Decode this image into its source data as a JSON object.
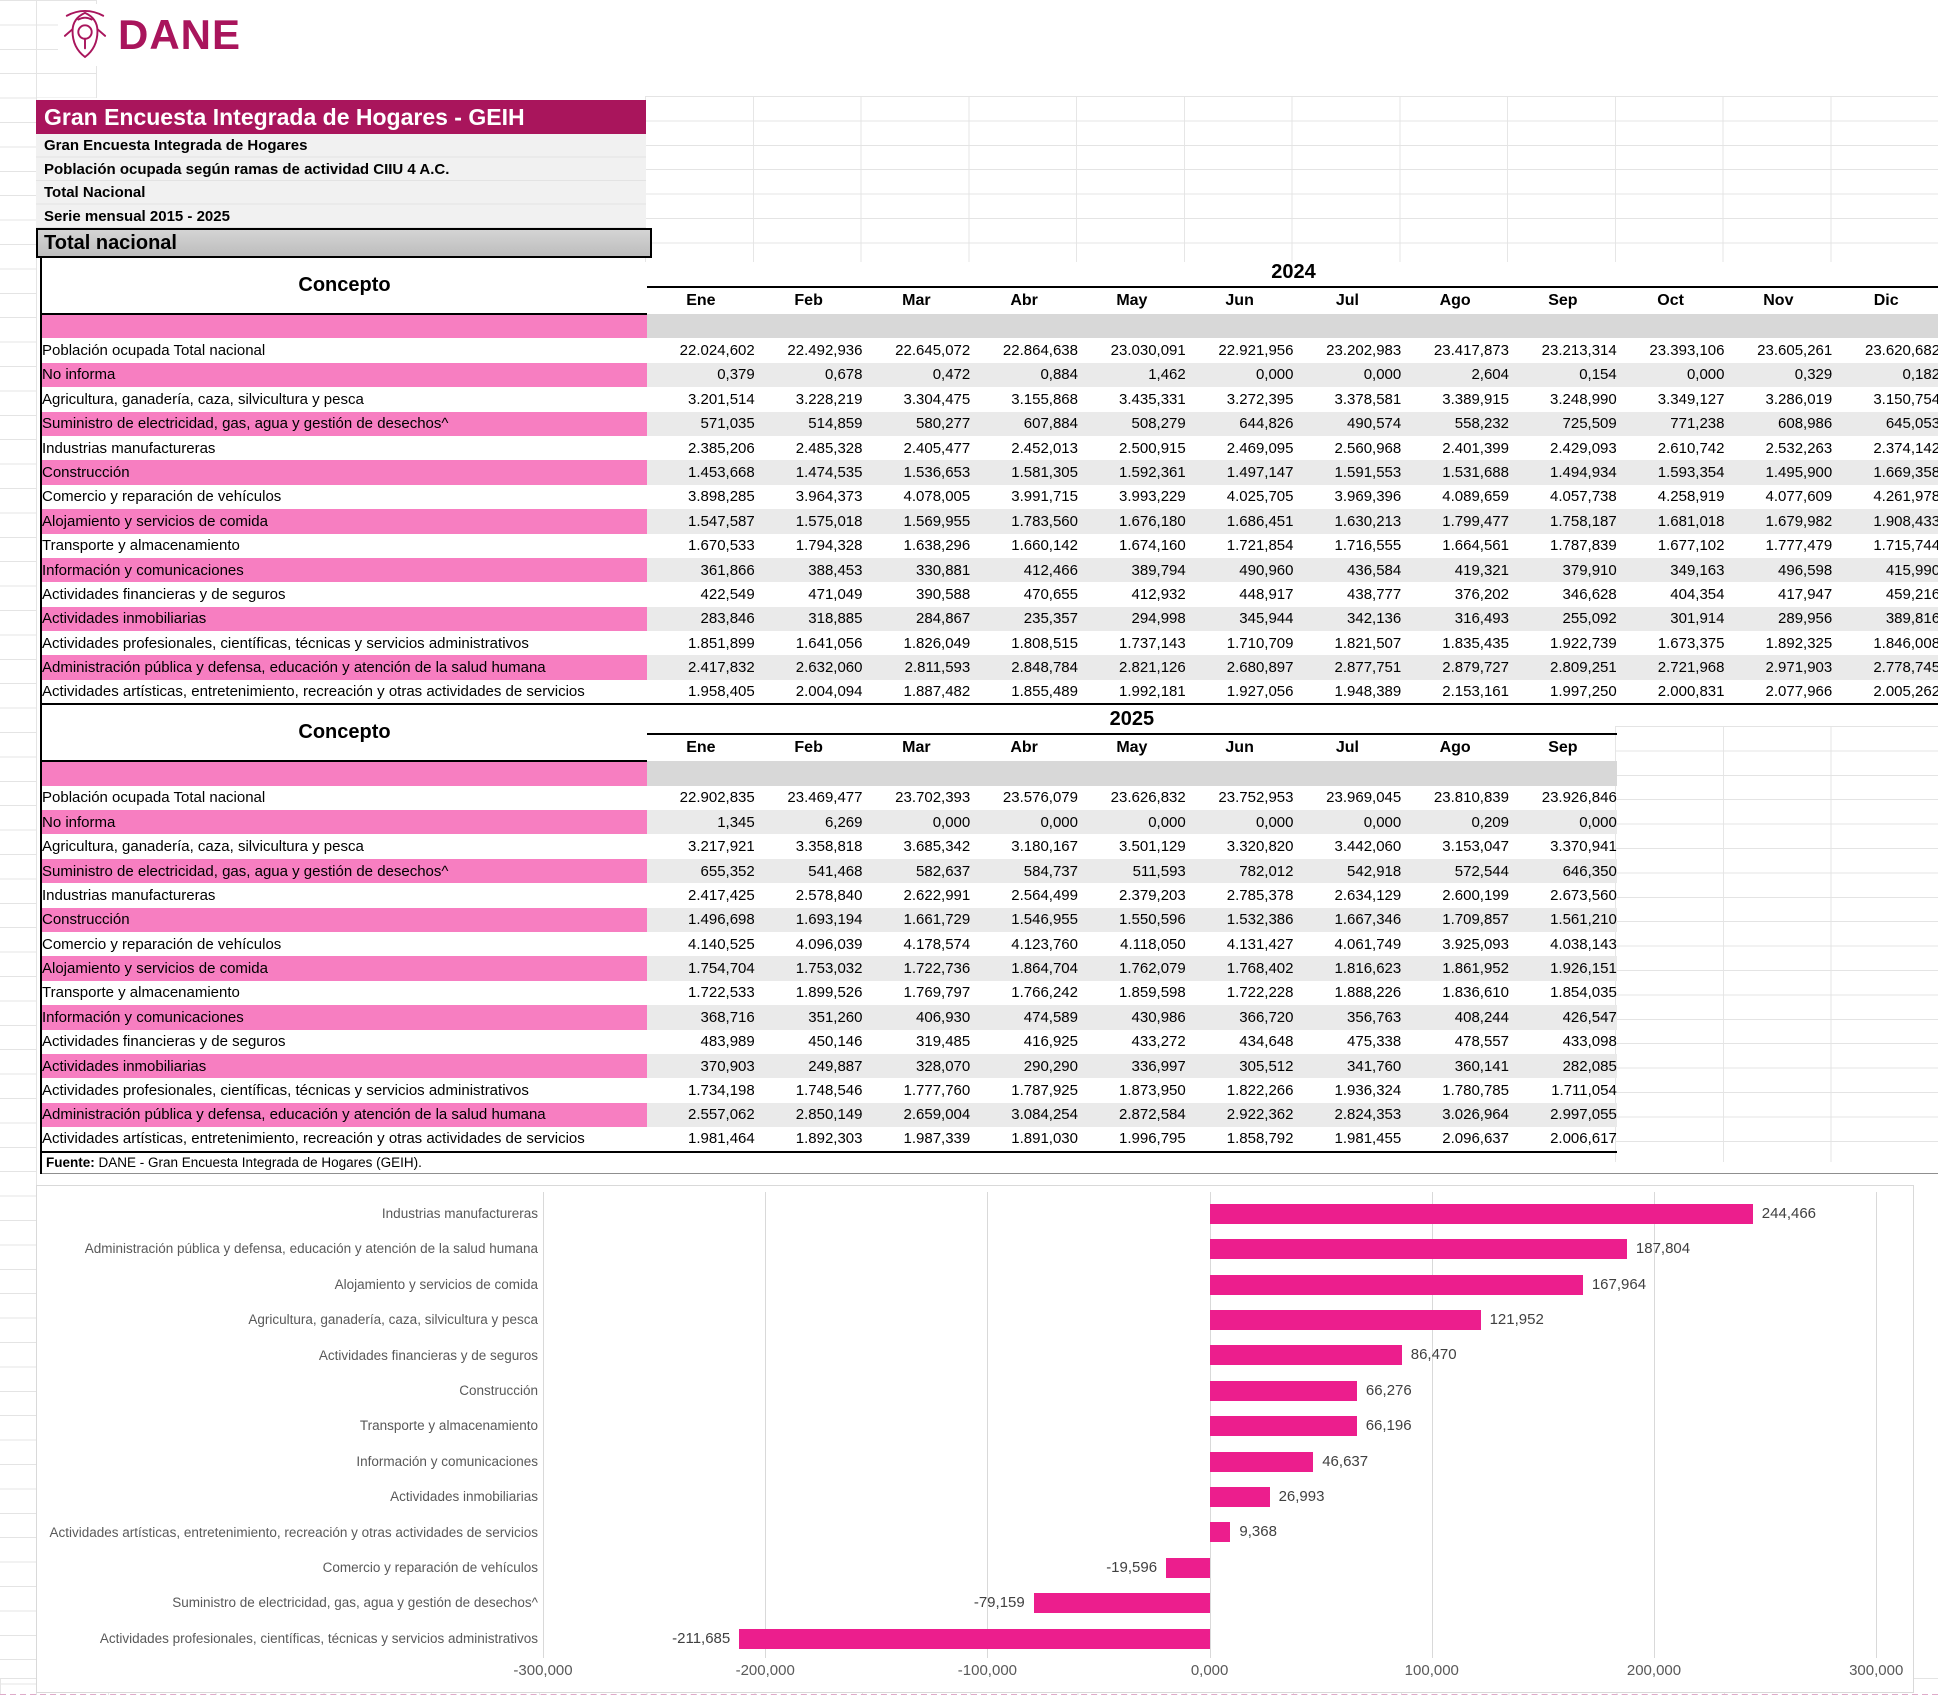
{
  "colors": {
    "accent": "#A9155C",
    "row_highlight": "#F77EC1",
    "row_gray": "#EAEAEA",
    "band_gray": "#D8D8D8",
    "bar": "#EC1E8D"
  },
  "header": {
    "logo_text": "DANE",
    "title": "Gran Encuesta Integrada de Hogares - GEIH",
    "subtitles": [
      "Gran Encuesta Integrada de Hogares",
      "Población ocupada según ramas de actividad CIIU 4 A.C.",
      "Total Nacional",
      "Serie mensual 2015 - 2025"
    ],
    "section_band": "Total nacional"
  },
  "tables": [
    {
      "year": "2024",
      "concept_header": "Concepto",
      "months": [
        "Ene",
        "Feb",
        "Mar",
        "Abr",
        "May",
        "Jun",
        "Jul",
        "Ago",
        "Sep",
        "Oct",
        "Nov",
        "Dic"
      ],
      "rows": [
        {
          "label": "Población ocupada Total nacional",
          "highlight": false,
          "values": [
            "22.024,602",
            "22.492,936",
            "22.645,072",
            "22.864,638",
            "23.030,091",
            "22.921,956",
            "23.202,983",
            "23.417,873",
            "23.213,314",
            "23.393,106",
            "23.605,261",
            "23.620,682"
          ]
        },
        {
          "label": "No informa",
          "highlight": true,
          "values": [
            "0,379",
            "0,678",
            "0,472",
            "0,884",
            "1,462",
            "0,000",
            "0,000",
            "2,604",
            "0,154",
            "0,000",
            "0,329",
            "0,182"
          ]
        },
        {
          "label": "Agricultura, ganadería, caza, silvicultura y pesca",
          "highlight": false,
          "values": [
            "3.201,514",
            "3.228,219",
            "3.304,475",
            "3.155,868",
            "3.435,331",
            "3.272,395",
            "3.378,581",
            "3.389,915",
            "3.248,990",
            "3.349,127",
            "3.286,019",
            "3.150,754"
          ]
        },
        {
          "label": "Suministro de electricidad, gas, agua y gestión de desechos^",
          "highlight": true,
          "values": [
            "571,035",
            "514,859",
            "580,277",
            "607,884",
            "508,279",
            "644,826",
            "490,574",
            "558,232",
            "725,509",
            "771,238",
            "608,986",
            "645,053"
          ]
        },
        {
          "label": "Industrias manufactureras",
          "highlight": false,
          "values": [
            "2.385,206",
            "2.485,328",
            "2.405,477",
            "2.452,013",
            "2.500,915",
            "2.469,095",
            "2.560,968",
            "2.401,399",
            "2.429,093",
            "2.610,742",
            "2.532,263",
            "2.374,142"
          ]
        },
        {
          "label": "Construcción",
          "highlight": true,
          "values": [
            "1.453,668",
            "1.474,535",
            "1.536,653",
            "1.581,305",
            "1.592,361",
            "1.497,147",
            "1.591,553",
            "1.531,688",
            "1.494,934",
            "1.593,354",
            "1.495,900",
            "1.669,358"
          ]
        },
        {
          "label": "Comercio y reparación de vehículos",
          "highlight": false,
          "values": [
            "3.898,285",
            "3.964,373",
            "4.078,005",
            "3.991,715",
            "3.993,229",
            "4.025,705",
            "3.969,396",
            "4.089,659",
            "4.057,738",
            "4.258,919",
            "4.077,609",
            "4.261,978"
          ]
        },
        {
          "label": "Alojamiento y servicios de comida",
          "highlight": true,
          "values": [
            "1.547,587",
            "1.575,018",
            "1.569,955",
            "1.783,560",
            "1.676,180",
            "1.686,451",
            "1.630,213",
            "1.799,477",
            "1.758,187",
            "1.681,018",
            "1.679,982",
            "1.908,433"
          ]
        },
        {
          "label": "Transporte y almacenamiento",
          "highlight": false,
          "values": [
            "1.670,533",
            "1.794,328",
            "1.638,296",
            "1.660,142",
            "1.674,160",
            "1.721,854",
            "1.716,555",
            "1.664,561",
            "1.787,839",
            "1.677,102",
            "1.777,479",
            "1.715,744"
          ]
        },
        {
          "label": "Información y comunicaciones",
          "highlight": true,
          "values": [
            "361,866",
            "388,453",
            "330,881",
            "412,466",
            "389,794",
            "490,960",
            "436,584",
            "419,321",
            "379,910",
            "349,163",
            "496,598",
            "415,990"
          ]
        },
        {
          "label": "Actividades financieras y de seguros",
          "highlight": false,
          "values": [
            "422,549",
            "471,049",
            "390,588",
            "470,655",
            "412,932",
            "448,917",
            "438,777",
            "376,202",
            "346,628",
            "404,354",
            "417,947",
            "459,216"
          ]
        },
        {
          "label": "Actividades inmobiliarias",
          "highlight": true,
          "values": [
            "283,846",
            "318,885",
            "284,867",
            "235,357",
            "294,998",
            "345,944",
            "342,136",
            "316,493",
            "255,092",
            "301,914",
            "289,956",
            "389,816"
          ]
        },
        {
          "label": "Actividades profesionales, científicas, técnicas y servicios administrativos",
          "highlight": false,
          "values": [
            "1.851,899",
            "1.641,056",
            "1.826,049",
            "1.808,515",
            "1.737,143",
            "1.710,709",
            "1.821,507",
            "1.835,435",
            "1.922,739",
            "1.673,375",
            "1.892,325",
            "1.846,008"
          ]
        },
        {
          "label": "Administración pública y defensa, educación y atención de la salud humana",
          "highlight": true,
          "values": [
            "2.417,832",
            "2.632,060",
            "2.811,593",
            "2.848,784",
            "2.821,126",
            "2.680,897",
            "2.877,751",
            "2.879,727",
            "2.809,251",
            "2.721,968",
            "2.971,903",
            "2.778,745"
          ]
        },
        {
          "label": "Actividades artísticas, entretenimiento, recreación y otras actividades de servicios",
          "highlight": false,
          "values": [
            "1.958,405",
            "2.004,094",
            "1.887,482",
            "1.855,489",
            "1.992,181",
            "1.927,056",
            "1.948,389",
            "2.153,161",
            "1.997,250",
            "2.000,831",
            "2.077,966",
            "2.005,262"
          ]
        }
      ]
    },
    {
      "year": "2025",
      "concept_header": "Concepto",
      "months": [
        "Ene",
        "Feb",
        "Mar",
        "Abr",
        "May",
        "Jun",
        "Jul",
        "Ago",
        "Sep"
      ],
      "rows": [
        {
          "label": "Población ocupada Total nacional",
          "highlight": false,
          "values": [
            "22.902,835",
            "23.469,477",
            "23.702,393",
            "23.576,079",
            "23.626,832",
            "23.752,953",
            "23.969,045",
            "23.810,839",
            "23.926,846"
          ]
        },
        {
          "label": "No informa",
          "highlight": true,
          "values": [
            "1,345",
            "6,269",
            "0,000",
            "0,000",
            "0,000",
            "0,000",
            "0,000",
            "0,209",
            "0,000"
          ]
        },
        {
          "label": "Agricultura, ganadería, caza, silvicultura y pesca",
          "highlight": false,
          "values": [
            "3.217,921",
            "3.358,818",
            "3.685,342",
            "3.180,167",
            "3.501,129",
            "3.320,820",
            "3.442,060",
            "3.153,047",
            "3.370,941"
          ]
        },
        {
          "label": "Suministro de electricidad, gas, agua y gestión de desechos^",
          "highlight": true,
          "values": [
            "655,352",
            "541,468",
            "582,637",
            "584,737",
            "511,593",
            "782,012",
            "542,918",
            "572,544",
            "646,350"
          ]
        },
        {
          "label": "Industrias manufactureras",
          "highlight": false,
          "values": [
            "2.417,425",
            "2.578,840",
            "2.622,991",
            "2.564,499",
            "2.379,203",
            "2.785,378",
            "2.634,129",
            "2.600,199",
            "2.673,560"
          ]
        },
        {
          "label": "Construcción",
          "highlight": true,
          "values": [
            "1.496,698",
            "1.693,194",
            "1.661,729",
            "1.546,955",
            "1.550,596",
            "1.532,386",
            "1.667,346",
            "1.709,857",
            "1.561,210"
          ]
        },
        {
          "label": "Comercio y reparación de vehículos",
          "highlight": false,
          "values": [
            "4.140,525",
            "4.096,039",
            "4.178,574",
            "4.123,760",
            "4.118,050",
            "4.131,427",
            "4.061,749",
            "3.925,093",
            "4.038,143"
          ]
        },
        {
          "label": "Alojamiento y servicios de comida",
          "highlight": true,
          "values": [
            "1.754,704",
            "1.753,032",
            "1.722,736",
            "1.864,704",
            "1.762,079",
            "1.768,402",
            "1.816,623",
            "1.861,952",
            "1.926,151"
          ]
        },
        {
          "label": "Transporte y almacenamiento",
          "highlight": false,
          "values": [
            "1.722,533",
            "1.899,526",
            "1.769,797",
            "1.766,242",
            "1.859,598",
            "1.722,228",
            "1.888,226",
            "1.836,610",
            "1.854,035"
          ]
        },
        {
          "label": "Información y comunicaciones",
          "highlight": true,
          "values": [
            "368,716",
            "351,260",
            "406,930",
            "474,589",
            "430,986",
            "366,720",
            "356,763",
            "408,244",
            "426,547"
          ]
        },
        {
          "label": "Actividades financieras y de seguros",
          "highlight": false,
          "values": [
            "483,989",
            "450,146",
            "319,485",
            "416,925",
            "433,272",
            "434,648",
            "475,338",
            "478,557",
            "433,098"
          ]
        },
        {
          "label": "Actividades inmobiliarias",
          "highlight": true,
          "values": [
            "370,903",
            "249,887",
            "328,070",
            "290,290",
            "336,997",
            "305,512",
            "341,760",
            "360,141",
            "282,085"
          ]
        },
        {
          "label": "Actividades profesionales, científicas, técnicas y servicios administrativos",
          "highlight": false,
          "values": [
            "1.734,198",
            "1.748,546",
            "1.777,760",
            "1.787,925",
            "1.873,950",
            "1.822,266",
            "1.936,324",
            "1.780,785",
            "1.711,054"
          ]
        },
        {
          "label": "Administración pública y defensa, educación y atención de la salud humana",
          "highlight": true,
          "values": [
            "2.557,062",
            "2.850,149",
            "2.659,004",
            "3.084,254",
            "2.872,584",
            "2.922,362",
            "2.824,353",
            "3.026,964",
            "2.997,055"
          ]
        },
        {
          "label": "Actividades artísticas, entretenimiento, recreación y otras actividades de servicios",
          "highlight": false,
          "values": [
            "1.981,464",
            "1.892,303",
            "1.987,339",
            "1.891,030",
            "1.996,795",
            "1.858,792",
            "1.981,455",
            "2.096,637",
            "2.006,617"
          ]
        }
      ]
    }
  ],
  "source_note": {
    "prefix": "Fuente:",
    "text": " DANE - Gran Encuesta Integrada de Hogares (GEIH)."
  },
  "chart_data": {
    "type": "bar",
    "orientation": "horizontal",
    "title": "",
    "xlabel": "",
    "ylabel": "",
    "grid": true,
    "legend": "none",
    "categories": [
      "Industrias manufactureras",
      "Administración pública y defensa, educación y atención de la salud humana",
      "Alojamiento y servicios de comida",
      "Agricultura, ganadería, caza, silvicultura y pesca",
      "Actividades financieras y de seguros",
      "Construcción",
      "Transporte y almacenamiento",
      "Información y comunicaciones",
      "Actividades inmobiliarias",
      "Actividades artísticas, entretenimiento, recreación y otras actividades de servicios",
      "Comercio y reparación de vehículos",
      "Suministro de electricidad, gas, agua y gestión de desechos^",
      "Actividades profesionales, científicas, técnicas y servicios administrativos"
    ],
    "values": [
      244.466,
      187.804,
      167.964,
      121.952,
      86.47,
      66.276,
      66.196,
      46.637,
      26.993,
      9.368,
      -19.596,
      -79.159,
      -211.685
    ],
    "value_labels": [
      "244,466",
      "187,804",
      "167,964",
      "121,952",
      "86,470",
      "66,276",
      "66,196",
      "46,637",
      "26,993",
      "9,368",
      "-19,596",
      "-79,159",
      "-211,685"
    ],
    "xlim": [
      -300,
      310
    ],
    "x_ticks": [
      -300,
      -200,
      -100,
      0,
      100,
      200,
      300
    ],
    "x_tick_labels": [
      "-300,000",
      "-200,000",
      "-100,000",
      "0,000",
      "100,000",
      "200,000",
      "300,000"
    ],
    "bar_color": "#EC1E8D"
  }
}
